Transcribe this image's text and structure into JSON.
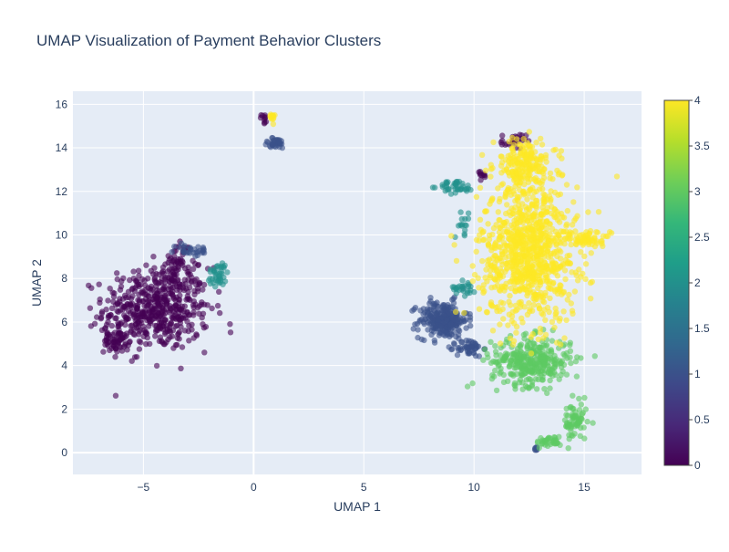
{
  "chart_data": {
    "type": "scatter",
    "title": "UMAP Visualization of Payment Behavior Clusters",
    "xlabel": "UMAP 1",
    "ylabel": "UMAP 2",
    "xlim": [
      -8.2,
      17.6
    ],
    "ylim": [
      -1.0,
      16.6
    ],
    "grid": true,
    "x_ticks": [
      -5,
      0,
      5,
      10,
      15
    ],
    "x_tick_labels": [
      "−5",
      "0",
      "5",
      "10",
      "15"
    ],
    "y_ticks": [
      0,
      2,
      4,
      6,
      8,
      10,
      12,
      14,
      16
    ],
    "y_tick_labels": [
      "0",
      "2",
      "4",
      "6",
      "8",
      "10",
      "12",
      "14",
      "16"
    ],
    "colorscale": "Viridis",
    "colorbar": {
      "range": [
        0,
        4
      ],
      "ticks": [
        0,
        0.5,
        1,
        1.5,
        2,
        2.5,
        3,
        3.5,
        4
      ],
      "tick_labels": [
        "0",
        "0.5",
        "1",
        "1.5",
        "2",
        "2.5",
        "3",
        "3.5",
        "4"
      ]
    },
    "clusters": [
      {
        "label": 0,
        "color": "#440154",
        "regions": [
          {
            "cx": -4.4,
            "cy": 6.6,
            "rx": 2.4,
            "ry": 1.9,
            "n": 520
          },
          {
            "cx": -6.3,
            "cy": 5.2,
            "rx": 0.5,
            "ry": 0.6,
            "n": 60
          },
          {
            "cx": -3.4,
            "cy": 8.7,
            "rx": 0.6,
            "ry": 1.0,
            "n": 60
          },
          {
            "cx": 0.5,
            "cy": 15.3,
            "rx": 0.15,
            "ry": 0.25,
            "n": 10
          },
          {
            "cx": 11.8,
            "cy": 14.3,
            "rx": 0.55,
            "ry": 0.35,
            "n": 25
          },
          {
            "cx": 10.3,
            "cy": 12.7,
            "rx": 0.3,
            "ry": 0.3,
            "n": 10
          }
        ]
      },
      {
        "label": 1,
        "color": "#3b528b",
        "regions": [
          {
            "cx": 8.6,
            "cy": 6.1,
            "rx": 1.1,
            "ry": 0.85,
            "n": 260
          },
          {
            "cx": 9.8,
            "cy": 4.8,
            "rx": 0.6,
            "ry": 0.4,
            "n": 50
          },
          {
            "cx": -2.8,
            "cy": 9.3,
            "rx": 0.8,
            "ry": 0.3,
            "n": 30
          },
          {
            "cx": 1.0,
            "cy": 14.2,
            "rx": 0.55,
            "ry": 0.25,
            "n": 35
          },
          {
            "cx": 12.8,
            "cy": 0.2,
            "rx": 0.2,
            "ry": 0.1,
            "n": 8
          }
        ]
      },
      {
        "label": 2,
        "color": "#21918c",
        "regions": [
          {
            "cx": 9.2,
            "cy": 12.2,
            "rx": 0.8,
            "ry": 0.3,
            "n": 40
          },
          {
            "cx": -1.6,
            "cy": 8.2,
            "rx": 0.5,
            "ry": 0.6,
            "n": 40
          },
          {
            "cx": 9.6,
            "cy": 7.6,
            "rx": 0.5,
            "ry": 0.4,
            "n": 25
          },
          {
            "cx": 9.5,
            "cy": 10.5,
            "rx": 0.35,
            "ry": 0.5,
            "n": 15
          }
        ]
      },
      {
        "label": 3,
        "color": "#5ec962",
        "regions": [
          {
            "cx": 12.6,
            "cy": 4.2,
            "rx": 1.8,
            "ry": 1.1,
            "n": 340
          },
          {
            "cx": 14.6,
            "cy": 1.4,
            "rx": 0.55,
            "ry": 0.9,
            "n": 70
          },
          {
            "cx": 13.4,
            "cy": 0.5,
            "rx": 0.55,
            "ry": 0.25,
            "n": 35
          }
        ]
      },
      {
        "label": 4,
        "color": "#fde725",
        "regions": [
          {
            "cx": 12.5,
            "cy": 9.2,
            "rx": 2.2,
            "ry": 3.2,
            "n": 900
          },
          {
            "cx": 12.3,
            "cy": 13.2,
            "rx": 1.4,
            "ry": 1.2,
            "n": 200
          },
          {
            "cx": 15.2,
            "cy": 9.8,
            "rx": 1.0,
            "ry": 0.3,
            "n": 50
          },
          {
            "cx": 0.85,
            "cy": 15.4,
            "rx": 0.1,
            "ry": 0.2,
            "n": 14
          }
        ]
      }
    ]
  }
}
